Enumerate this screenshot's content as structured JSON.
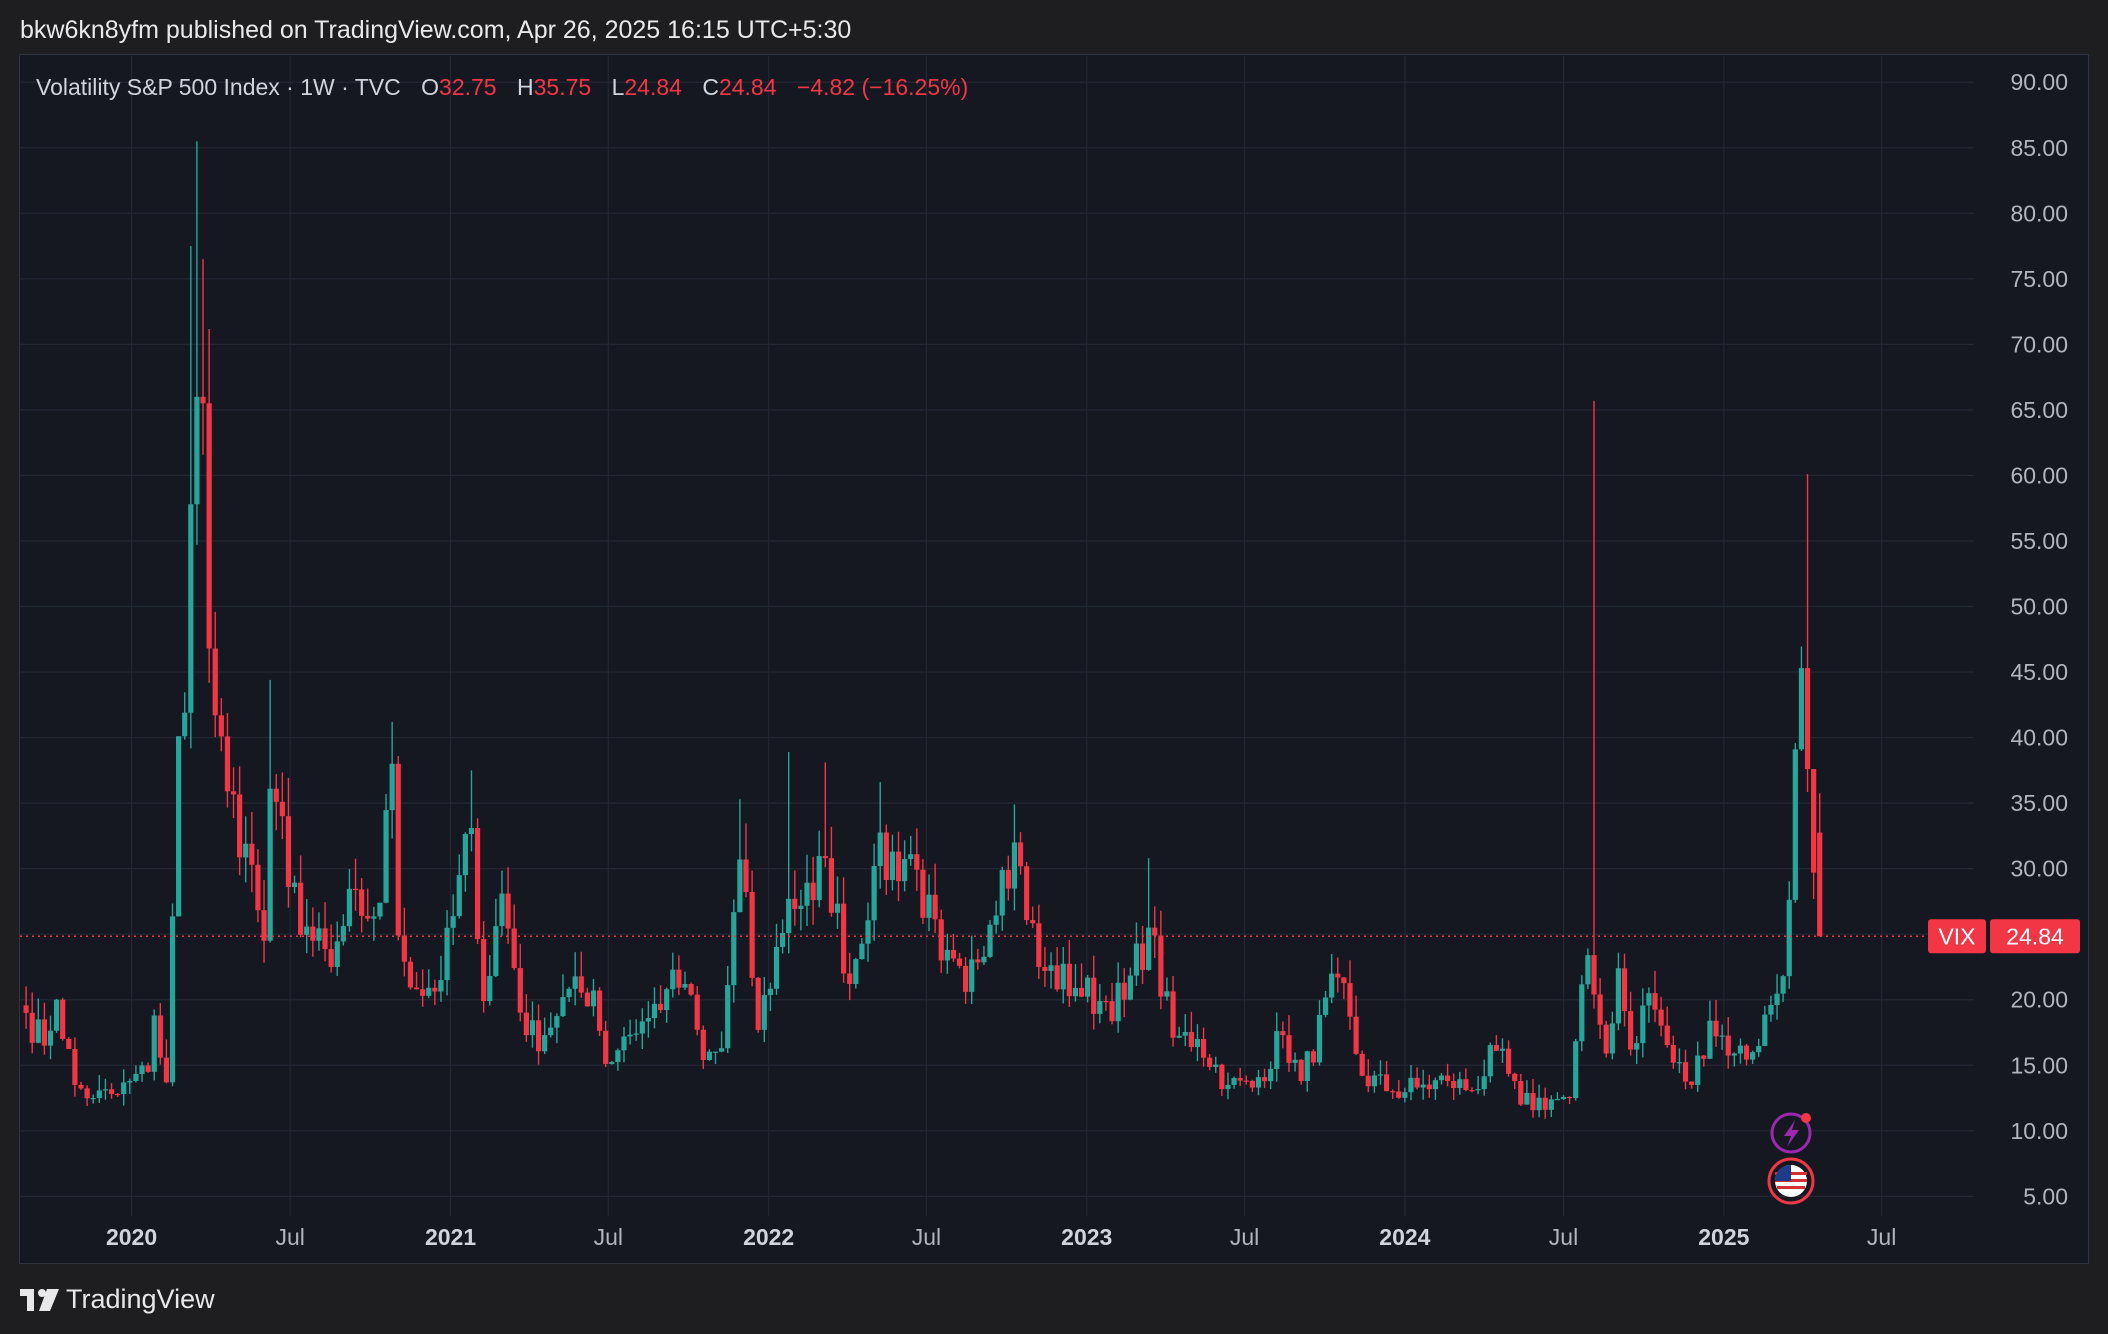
{
  "header": {
    "publisher_text": "bkw6kn8yfm published on TradingView.com, Apr 26, 2025 16:15 UTC+5:30"
  },
  "legend": {
    "symbol_text": "Volatility S&P 500 Index · 1W · TVC",
    "o_label": "O",
    "o_value": "32.75",
    "h_label": "H",
    "h_value": "35.75",
    "l_label": "L",
    "l_value": "24.84",
    "c_label": "C",
    "c_value": "24.84",
    "change": "−4.82 (−16.25%)"
  },
  "price_tag": {
    "symbol": "VIX",
    "value": "24.84"
  },
  "footer": {
    "brand": "TradingView"
  },
  "colors": {
    "up": "#26a69a",
    "down": "#f23645",
    "background": "#151821",
    "grid": "#232734",
    "text": "#b2b5be"
  },
  "chart_data": {
    "type": "candlestick",
    "interval": "1W",
    "ylim": [
      3.5,
      92
    ],
    "y_ticks": [
      "5.00",
      "10.00",
      "15.00",
      "20.00",
      "25.00",
      "30.00",
      "35.00",
      "40.00",
      "45.00",
      "50.00",
      "55.00",
      "60.00",
      "65.00",
      "70.00",
      "75.00",
      "80.00",
      "85.00",
      "90.00"
    ],
    "x_ticks": [
      {
        "label": "2020",
        "date": "2020-01-01",
        "bold": true
      },
      {
        "label": "Jul",
        "date": "2020-07-01",
        "bold": false
      },
      {
        "label": "2021",
        "date": "2021-01-01",
        "bold": true
      },
      {
        "label": "Jul",
        "date": "2021-07-01",
        "bold": false
      },
      {
        "label": "2022",
        "date": "2022-01-01",
        "bold": true
      },
      {
        "label": "Jul",
        "date": "2022-07-01",
        "bold": false
      },
      {
        "label": "2023",
        "date": "2023-01-01",
        "bold": true
      },
      {
        "label": "Jul",
        "date": "2023-07-01",
        "bold": false
      },
      {
        "label": "2024",
        "date": "2024-01-01",
        "bold": true
      },
      {
        "label": "Jul",
        "date": "2024-07-01",
        "bold": false
      },
      {
        "label": "2025",
        "date": "2025-01-01",
        "bold": true
      },
      {
        "label": "Jul",
        "date": "2025-07-01",
        "bold": false
      }
    ],
    "x_range": [
      "2019-08-26",
      "2025-10-15"
    ],
    "last_price": 24.84,
    "anchors": [
      [
        "2019-09-02",
        19.0
      ],
      [
        "2019-09-23",
        16.5
      ],
      [
        "2019-10-07",
        20.0
      ],
      [
        "2019-10-28",
        13.5
      ],
      [
        "2019-11-18",
        12.5
      ],
      [
        "2019-12-16",
        12.8
      ],
      [
        "2019-12-30",
        13.8
      ],
      [
        "2020-01-20",
        14.5
      ],
      [
        "2020-01-27",
        18.8
      ],
      [
        "2020-02-10",
        13.7
      ],
      [
        "2020-02-24",
        40.1
      ],
      [
        "2020-03-02",
        41.9
      ],
      [
        "2020-03-09",
        57.8
      ],
      [
        "2020-03-16",
        66.0
      ],
      [
        "2020-03-23",
        65.5
      ],
      [
        "2020-03-30",
        46.8
      ],
      [
        "2020-04-06",
        41.7
      ],
      [
        "2020-04-20",
        35.9
      ],
      [
        "2020-05-11",
        31.9
      ],
      [
        "2020-06-01",
        24.5
      ],
      [
        "2020-06-08",
        36.1
      ],
      [
        "2020-06-15",
        35.1
      ],
      [
        "2020-06-29",
        28.6
      ],
      [
        "2020-07-27",
        24.5
      ],
      [
        "2020-08-17",
        22.5
      ],
      [
        "2020-09-08",
        26.9
      ],
      [
        "2020-09-21",
        26.4
      ],
      [
        "2020-10-12",
        27.4
      ],
      [
        "2020-10-26",
        38.0
      ],
      [
        "2020-11-02",
        24.9
      ],
      [
        "2020-11-23",
        20.8
      ],
      [
        "2020-12-21",
        21.5
      ],
      [
        "2021-01-25",
        33.1
      ],
      [
        "2021-02-08",
        19.9
      ],
      [
        "2021-03-01",
        28.1
      ],
      [
        "2021-03-29",
        17.3
      ],
      [
        "2021-04-19",
        17.3
      ],
      [
        "2021-05-10",
        20.2
      ],
      [
        "2021-06-14",
        20.7
      ],
      [
        "2021-06-28",
        15.1
      ],
      [
        "2021-07-19",
        17.2
      ],
      [
        "2021-08-16",
        18.6
      ],
      [
        "2021-09-06",
        20.8
      ],
      [
        "2021-09-27",
        21.2
      ],
      [
        "2021-10-18",
        15.4
      ],
      [
        "2021-11-08",
        16.3
      ],
      [
        "2021-11-29",
        30.7
      ],
      [
        "2021-12-20",
        17.7
      ],
      [
        "2022-01-24",
        27.7
      ],
      [
        "2022-02-21",
        27.6
      ],
      [
        "2022-03-07",
        30.8
      ],
      [
        "2022-04-04",
        21.2
      ],
      [
        "2022-05-02",
        30.2
      ],
      [
        "2022-06-13",
        31.1
      ],
      [
        "2022-07-18",
        23.0
      ],
      [
        "2022-08-15",
        20.6
      ],
      [
        "2022-09-26",
        29.9
      ],
      [
        "2022-10-10",
        32.0
      ],
      [
        "2022-11-07",
        22.5
      ],
      [
        "2022-12-19",
        20.9
      ],
      [
        "2023-01-16",
        19.9
      ],
      [
        "2023-02-13",
        20.0
      ],
      [
        "2023-03-13",
        25.5
      ],
      [
        "2023-04-10",
        17.1
      ],
      [
        "2023-05-08",
        17.0
      ],
      [
        "2023-06-12",
        13.5
      ],
      [
        "2023-07-10",
        13.3
      ],
      [
        "2023-08-14",
        17.3
      ],
      [
        "2023-09-04",
        13.8
      ],
      [
        "2023-10-16",
        21.7
      ],
      [
        "2023-11-13",
        14.2
      ],
      [
        "2023-12-18",
        13.0
      ],
      [
        "2024-01-15",
        13.3
      ],
      [
        "2024-02-19",
        13.8
      ],
      [
        "2024-03-18",
        13.1
      ],
      [
        "2024-04-15",
        16.1
      ],
      [
        "2024-05-13",
        12.0
      ],
      [
        "2024-06-17",
        12.4
      ],
      [
        "2024-07-08",
        12.5
      ],
      [
        "2024-07-29",
        23.4
      ],
      [
        "2024-08-05",
        20.4
      ],
      [
        "2024-08-19",
        15.9
      ],
      [
        "2024-09-02",
        22.4
      ],
      [
        "2024-09-16",
        16.2
      ],
      [
        "2024-10-07",
        20.5
      ],
      [
        "2024-11-04",
        15.2
      ],
      [
        "2024-11-25",
        13.5
      ],
      [
        "2024-12-16",
        18.4
      ],
      [
        "2025-01-13",
        15.9
      ],
      [
        "2025-02-03",
        16.0
      ],
      [
        "2025-02-24",
        19.6
      ],
      [
        "2025-03-10",
        21.8
      ],
      [
        "2025-03-31",
        45.3
      ],
      [
        "2025-04-07",
        37.6
      ],
      [
        "2025-04-14",
        29.7
      ],
      [
        "2025-04-21",
        24.8
      ]
    ],
    "spikes": [
      [
        "2020-03-16",
        85.5
      ],
      [
        "2020-03-23",
        76.5
      ],
      [
        "2020-03-09",
        77.5
      ],
      [
        "2024-08-05",
        65.7
      ],
      [
        "2025-04-07",
        60.1
      ],
      [
        "2020-06-08",
        44.4
      ],
      [
        "2020-10-26",
        41.2
      ],
      [
        "2021-01-25",
        37.5
      ],
      [
        "2021-11-29",
        35.3
      ],
      [
        "2022-01-24",
        38.9
      ],
      [
        "2022-03-07",
        38.1
      ],
      [
        "2022-05-09",
        36.6
      ],
      [
        "2022-10-10",
        34.9
      ],
      [
        "2023-03-13",
        30.8
      ],
      [
        "2025-04-14",
        35.7
      ]
    ],
    "last_candle": {
      "date": "2025-04-21",
      "open": 32.75,
      "high": 35.75,
      "low": 24.84,
      "close": 24.84
    }
  }
}
